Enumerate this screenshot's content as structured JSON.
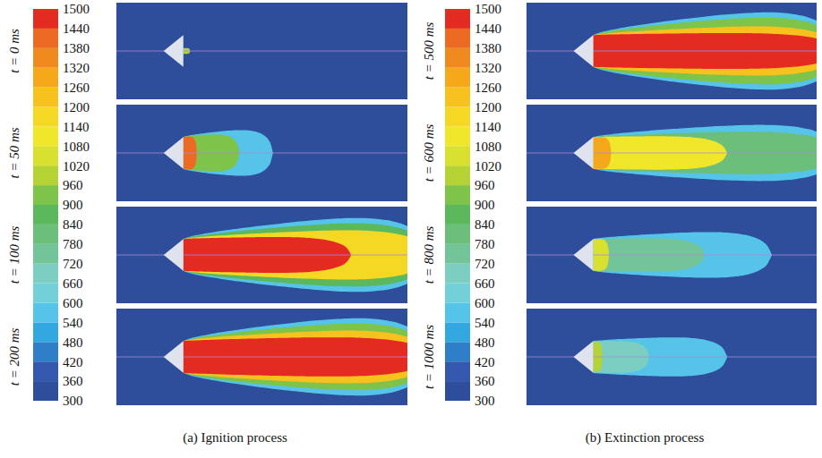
{
  "chart_data": {
    "type": "contour",
    "colorbar": {
      "range": [
        300,
        1500
      ],
      "ticks": [
        300,
        360,
        420,
        480,
        540,
        600,
        660,
        720,
        780,
        840,
        900,
        960,
        1020,
        1080,
        1140,
        1200,
        1260,
        1320,
        1380,
        1440,
        1500
      ],
      "colors": [
        "#2e4d9a",
        "#3358ad",
        "#2f7fc8",
        "#33a7e0",
        "#55c4e8",
        "#72d0d8",
        "#7ccfc0",
        "#74c49a",
        "#6cbf7a",
        "#5cb85c",
        "#7ec34a",
        "#b5d334",
        "#d8e030",
        "#f0e62a",
        "#f5d824",
        "#f7c21e",
        "#f5a81a",
        "#f08a1e",
        "#ec6a22",
        "#e32b22"
      ]
    },
    "groups": [
      {
        "caption": "(a) Ignition process",
        "panels": [
          {
            "label": "t = 0 ms",
            "zones": [
              {
                "T": 1000,
                "length": 0.03,
                "width": 0.06
              }
            ]
          },
          {
            "label": "t = 50 ms",
            "zones": [
              {
                "T": 540,
                "length": 0.4,
                "width": 0.55
              },
              {
                "T": 900,
                "length": 0.25,
                "width": 0.42
              },
              {
                "T": 1380,
                "length": 0.06,
                "width": 0.35
              }
            ]
          },
          {
            "label": "t = 100 ms",
            "zones": [
              {
                "T": 540,
                "length": 1.1,
                "width": 0.95
              },
              {
                "T": 840,
                "length": 1.1,
                "width": 0.8
              },
              {
                "T": 1140,
                "length": 1.1,
                "width": 0.6
              },
              {
                "T": 1500,
                "length": 0.75,
                "width": 0.4
              }
            ]
          },
          {
            "label": "t = 200 ms",
            "zones": [
              {
                "T": 540,
                "length": 1.1,
                "width": 1.0
              },
              {
                "T": 900,
                "length": 1.1,
                "width": 0.85
              },
              {
                "T": 1200,
                "length": 1.1,
                "width": 0.65
              },
              {
                "T": 1500,
                "length": 1.1,
                "width": 0.45
              }
            ]
          }
        ]
      },
      {
        "caption": "(b) Extinction process",
        "panels": [
          {
            "label": "t = 500 ms",
            "zones": [
              {
                "T": 540,
                "length": 1.1,
                "width": 1.0
              },
              {
                "T": 900,
                "length": 1.1,
                "width": 0.85
              },
              {
                "T": 1200,
                "length": 1.1,
                "width": 0.6
              },
              {
                "T": 1500,
                "length": 1.1,
                "width": 0.4
              }
            ]
          },
          {
            "label": "t = 600 ms",
            "zones": [
              {
                "T": 540,
                "length": 1.1,
                "width": 0.7
              },
              {
                "T": 780,
                "length": 1.1,
                "width": 0.5
              },
              {
                "T": 1080,
                "length": 0.6,
                "width": 0.36
              },
              {
                "T": 1260,
                "length": 0.08,
                "width": 0.33
              }
            ]
          },
          {
            "label": "t = 800 ms",
            "zones": [
              {
                "T": 540,
                "length": 0.8,
                "width": 0.55
              },
              {
                "T": 720,
                "length": 0.5,
                "width": 0.36
              },
              {
                "T": 1020,
                "length": 0.07,
                "width": 0.33
              }
            ]
          },
          {
            "label": "t = 1000 ms",
            "zones": [
              {
                "T": 540,
                "length": 0.6,
                "width": 0.45
              },
              {
                "T": 660,
                "length": 0.25,
                "width": 0.33
              },
              {
                "T": 960,
                "length": 0.04,
                "width": 0.31
              }
            ]
          }
        ]
      }
    ]
  }
}
